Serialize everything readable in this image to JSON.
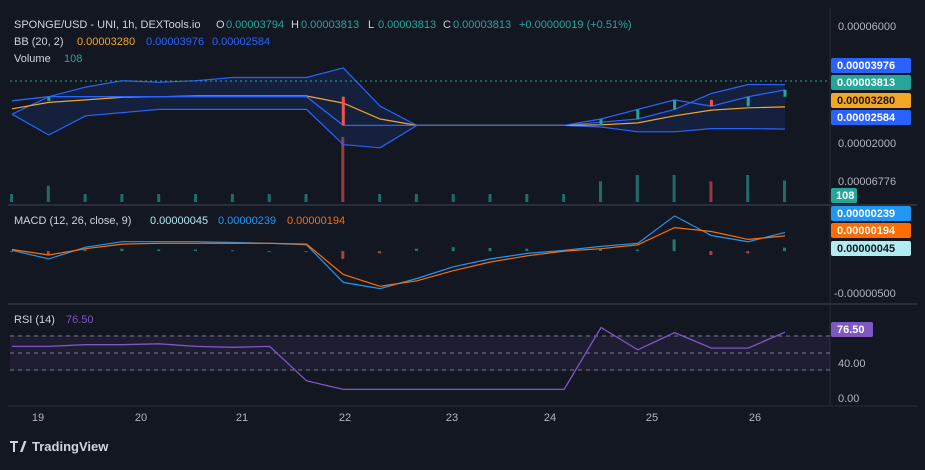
{
  "header": {
    "symbol": "SPONGE/USD - UNI, 1h, DEXTools.io",
    "o_label": "O",
    "o_value": "0.00003794",
    "h_label": "H",
    "h_value": "0.00003813",
    "l_label": "L",
    "l_value": "0.00003813",
    "c_label": "C",
    "c_value": "0.00003813",
    "change": "+0.00000019 (+0.51%)"
  },
  "bb_legend": {
    "label": "BB (20, 2)",
    "basis": "0.00003280",
    "upper": "0.00003976",
    "lower": "0.00002584"
  },
  "volume_legend": {
    "label": "Volume",
    "value": "108"
  },
  "macd_legend": {
    "label": "MACD (12, 26, close, 9)",
    "hist": "0.00000045",
    "macd": "0.00000239",
    "signal": "0.00000194"
  },
  "rsi_legend": {
    "label": "RSI (14)",
    "value": "76.50"
  },
  "price_axis": {
    "top": "0.00006000",
    "mid": "0.00002000",
    "vol_tick": "0.00006776"
  },
  "price_badges": {
    "upper": "0.00003976",
    "close": "0.00003813",
    "basis": "0.00003280",
    "lower": "0.00002584",
    "volume": "108"
  },
  "macd_axis": {
    "bottom": "-0.00000500"
  },
  "macd_badges": {
    "macd": "0.00000239",
    "signal": "0.00000194",
    "hist": "0.00000045"
  },
  "rsi_axis": {
    "t40": "40.00",
    "t0": "0.00"
  },
  "rsi_badge": "76.50",
  "time_axis": [
    "19",
    "20",
    "21",
    "22",
    "23",
    "24",
    "25",
    "26"
  ],
  "branding": {
    "logo_text": "TradingView"
  },
  "colors": {
    "bg": "#131722",
    "up": "#26a69a",
    "down": "#ef5350",
    "bb_band": "#2962ff",
    "basis": "#f5a623",
    "macd": "#2196f3",
    "signal": "#ff6d00",
    "rsi": "#7e57c2"
  },
  "chart_data": [
    {
      "type": "line",
      "name": "price-with-bollinger",
      "x_ticks": [
        "19",
        "20",
        "21",
        "22",
        "23",
        "24",
        "25",
        "26"
      ],
      "bb_upper": [
        3.05e-05,
        3.6e-05,
        3.9e-05,
        4.1e-05,
        4.05e-05,
        4.1e-05,
        4.2e-05,
        4.2e-05,
        4.2e-05,
        4.5e-05,
        3.3e-05,
        2.7e-05,
        2.7e-05,
        2.7e-05,
        2.7e-05,
        2.7e-05,
        2.8e-05,
        2.9e-05,
        3.2e-05,
        3.7e-05,
        3.98e-05,
        3.976e-05
      ],
      "bb_basis": [
        3.22e-05,
        3.42e-05,
        3.5e-05,
        3.58e-05,
        3.6e-05,
        3.62e-05,
        3.62e-05,
        3.62e-05,
        3.62e-05,
        3.4e-05,
        2.9e-05,
        2.7e-05,
        2.7e-05,
        2.7e-05,
        2.7e-05,
        2.7e-05,
        2.72e-05,
        2.78e-05,
        3e-05,
        3.18e-05,
        3.25e-05,
        3.28e-05
      ],
      "bb_lower": [
        3.05e-05,
        2.4e-05,
        3e-05,
        3.1e-05,
        3.2e-05,
        3.2e-05,
        3.2e-05,
        3.2e-05,
        3.2e-05,
        2.1e-05,
        2e-05,
        2.7e-05,
        2.7e-05,
        2.7e-05,
        2.7e-05,
        2.7e-05,
        2.65e-05,
        2.5e-05,
        2.5e-05,
        2.6e-05,
        2.6e-05,
        2.584e-05
      ],
      "close": [
        3.47e-05,
        3.6e-05,
        3.6e-05,
        3.6e-05,
        3.6e-05,
        3.6e-05,
        3.6e-05,
        3.6e-05,
        3.6e-05,
        2.7e-05,
        2.7e-05,
        2.7e-05,
        2.7e-05,
        2.7e-05,
        2.7e-05,
        2.7e-05,
        2.9e-05,
        3.2e-05,
        3.5e-05,
        3.3e-05,
        3.6e-05,
        3.813e-05
      ],
      "ylim": [
        6.78e-06,
        6e-05
      ]
    },
    {
      "type": "line",
      "name": "macd",
      "macd": [
        1e-07,
        -1e-06,
        5e-07,
        1.2e-06,
        1.2e-06,
        1.2e-06,
        1.1e-06,
        1e-06,
        8e-07,
        -4e-06,
        -4.8e-06,
        -3.5e-06,
        -2e-06,
        -1e-06,
        -3e-07,
        1e-07,
        6e-07,
        1e-06,
        4.5e-06,
        2e-06,
        1.2e-06,
        2.39e-06
      ],
      "signal": [
        2e-07,
        -5e-07,
        3e-07,
        9e-07,
        1e-06,
        1e-06,
        1e-06,
        1e-06,
        9e-07,
        -3e-06,
        -4.5e-06,
        -3.8e-06,
        -2.5e-06,
        -1.4e-06,
        -6e-07,
        0.0,
        3e-07,
        8e-07,
        3e-06,
        2.5e-06,
        1.5e-06,
        1.94e-06
      ],
      "ylim": [
        -6e-06,
        5e-06
      ]
    },
    {
      "type": "line",
      "name": "rsi",
      "rsi": [
        60,
        60,
        62,
        62,
        63,
        60,
        59,
        60,
        20,
        10,
        10,
        10,
        10,
        10,
        10,
        10,
        82,
        56,
        76,
        58,
        58,
        76.5
      ],
      "ylim": [
        0,
        100
      ],
      "levels": [
        70,
        50,
        30
      ]
    }
  ]
}
